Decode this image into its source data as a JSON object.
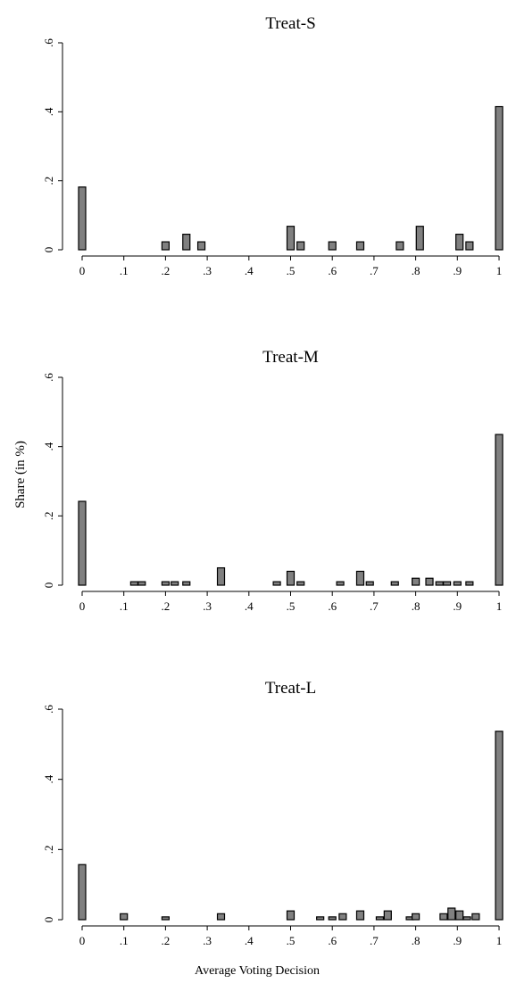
{
  "figure": {
    "ylabel": "Share (in %)",
    "xlabel": "Average Voting Decision"
  },
  "chart_data": [
    {
      "type": "bar",
      "title": "Treat-S",
      "xlim": [
        0,
        1
      ],
      "ylim": [
        0,
        0.6
      ],
      "x_ticks": [
        0,
        0.1,
        0.2,
        0.3,
        0.4,
        0.5,
        0.6,
        0.7,
        0.8,
        0.9,
        1
      ],
      "x_tick_labels": [
        "0",
        ".1",
        ".2",
        ".3",
        ".4",
        ".5",
        ".6",
        ".7",
        ".8",
        ".9",
        "1"
      ],
      "y_ticks": [
        0,
        0.2,
        0.4,
        0.6
      ],
      "y_tick_labels": [
        "0",
        ".2",
        ".4",
        ".6"
      ],
      "bins": [
        {
          "x": 0.0,
          "value": 0.182
        },
        {
          "x": 0.2,
          "value": 0.023
        },
        {
          "x": 0.25,
          "value": 0.045
        },
        {
          "x": 0.286,
          "value": 0.023
        },
        {
          "x": 0.5,
          "value": 0.068
        },
        {
          "x": 0.524,
          "value": 0.023
        },
        {
          "x": 0.6,
          "value": 0.023
        },
        {
          "x": 0.667,
          "value": 0.023
        },
        {
          "x": 0.762,
          "value": 0.023
        },
        {
          "x": 0.81,
          "value": 0.068
        },
        {
          "x": 0.905,
          "value": 0.045
        },
        {
          "x": 0.929,
          "value": 0.023
        },
        {
          "x": 1.0,
          "value": 0.415
        }
      ]
    },
    {
      "type": "bar",
      "title": "Treat-M",
      "xlim": [
        0,
        1
      ],
      "ylim": [
        0,
        0.6
      ],
      "x_ticks": [
        0,
        0.1,
        0.2,
        0.3,
        0.4,
        0.5,
        0.6,
        0.7,
        0.8,
        0.9,
        1
      ],
      "x_tick_labels": [
        "0",
        ".1",
        ".2",
        ".3",
        ".4",
        ".5",
        ".6",
        ".7",
        ".8",
        ".9",
        "1"
      ],
      "y_ticks": [
        0,
        0.2,
        0.4,
        0.6
      ],
      "y_tick_labels": [
        "0",
        ".2",
        ".4",
        ".6"
      ],
      "bins": [
        {
          "x": 0.0,
          "value": 0.242
        },
        {
          "x": 0.125,
          "value": 0.01
        },
        {
          "x": 0.143,
          "value": 0.01
        },
        {
          "x": 0.2,
          "value": 0.01
        },
        {
          "x": 0.222,
          "value": 0.01
        },
        {
          "x": 0.25,
          "value": 0.01
        },
        {
          "x": 0.333,
          "value": 0.05
        },
        {
          "x": 0.467,
          "value": 0.01
        },
        {
          "x": 0.5,
          "value": 0.04
        },
        {
          "x": 0.524,
          "value": 0.01
        },
        {
          "x": 0.619,
          "value": 0.01
        },
        {
          "x": 0.667,
          "value": 0.04
        },
        {
          "x": 0.69,
          "value": 0.01
        },
        {
          "x": 0.75,
          "value": 0.01
        },
        {
          "x": 0.8,
          "value": 0.02
        },
        {
          "x": 0.833,
          "value": 0.02
        },
        {
          "x": 0.857,
          "value": 0.01
        },
        {
          "x": 0.875,
          "value": 0.01
        },
        {
          "x": 0.9,
          "value": 0.01
        },
        {
          "x": 0.929,
          "value": 0.01
        },
        {
          "x": 1.0,
          "value": 0.435
        }
      ]
    },
    {
      "type": "bar",
      "title": "Treat-L",
      "xlim": [
        0,
        1
      ],
      "ylim": [
        0,
        0.6
      ],
      "x_ticks": [
        0,
        0.1,
        0.2,
        0.3,
        0.4,
        0.5,
        0.6,
        0.7,
        0.8,
        0.9,
        1
      ],
      "x_tick_labels": [
        "0",
        ".1",
        ".2",
        ".3",
        ".4",
        ".5",
        ".6",
        ".7",
        ".8",
        ".9",
        "1"
      ],
      "y_ticks": [
        0,
        0.2,
        0.4,
        0.6
      ],
      "y_tick_labels": [
        "0",
        ".2",
        ".4",
        ".6"
      ],
      "bins": [
        {
          "x": 0.0,
          "value": 0.157
        },
        {
          "x": 0.1,
          "value": 0.017
        },
        {
          "x": 0.2,
          "value": 0.008
        },
        {
          "x": 0.333,
          "value": 0.017
        },
        {
          "x": 0.5,
          "value": 0.025
        },
        {
          "x": 0.571,
          "value": 0.008
        },
        {
          "x": 0.6,
          "value": 0.008
        },
        {
          "x": 0.625,
          "value": 0.017
        },
        {
          "x": 0.667,
          "value": 0.025
        },
        {
          "x": 0.714,
          "value": 0.008
        },
        {
          "x": 0.733,
          "value": 0.025
        },
        {
          "x": 0.786,
          "value": 0.008
        },
        {
          "x": 0.8,
          "value": 0.017
        },
        {
          "x": 0.867,
          "value": 0.017
        },
        {
          "x": 0.886,
          "value": 0.033
        },
        {
          "x": 0.905,
          "value": 0.025
        },
        {
          "x": 0.923,
          "value": 0.008
        },
        {
          "x": 0.944,
          "value": 0.017
        },
        {
          "x": 1.0,
          "value": 0.537
        }
      ]
    }
  ]
}
